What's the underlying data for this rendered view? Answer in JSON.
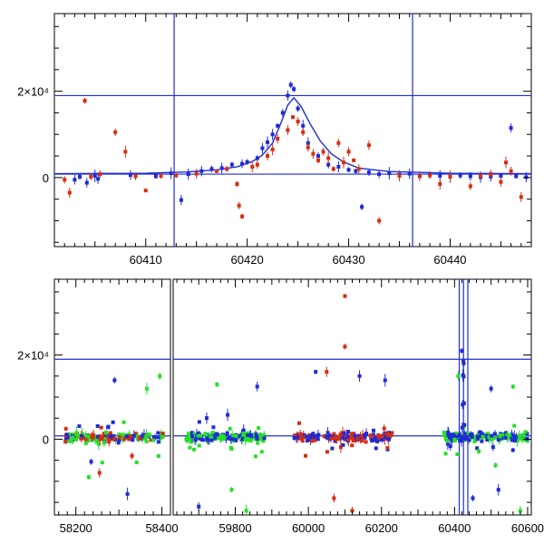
{
  "colors": {
    "red": "#d82e10",
    "blue": "#1f2bd6",
    "green": "#27e027",
    "line": "#1f2bd6"
  },
  "chart_data": [
    {
      "type": "scatter",
      "title": "",
      "xlabel": "",
      "ylabel": "",
      "xlim": [
        60401,
        60448
      ],
      "ylim": [
        -16000,
        38000
      ],
      "x_ticks": [
        60410,
        60420,
        60430,
        60440
      ],
      "x_tick_labels": [
        "60410",
        "60420",
        "60430",
        "60440"
      ],
      "y_ticks": [
        0,
        20000
      ],
      "y_tick_labels": [
        "0",
        "2×10⁴"
      ],
      "hlines": [
        19000,
        800
      ],
      "vlines": [
        60412.8,
        60436.3
      ],
      "model_curve": {
        "color": "blue",
        "x": [
          60401,
          60410,
          60414,
          60417,
          60419,
          60420.5,
          60421.5,
          60422.5,
          60423.3,
          60424.0,
          60424.6,
          60425.3,
          60426.2,
          60427.2,
          60428.3,
          60429.5,
          60431,
          60434,
          60440,
          60448
        ],
        "y": [
          900,
          1000,
          1300,
          1800,
          2500,
          3700,
          5200,
          8000,
          12500,
          16800,
          18500,
          16500,
          12500,
          8500,
          5500,
          3600,
          2200,
          1400,
          1000,
          900
        ]
      },
      "series": [
        {
          "color": "blue",
          "x": [
            60403.0,
            60403.5,
            60404.2,
            60405.0,
            60405.3,
            60408.5,
            60411.0,
            60412.5,
            60413.5,
            60414.2,
            60415.5,
            60416.5,
            60417.5,
            60418.5,
            60419.5,
            60420.0,
            60421.0,
            60421.5,
            60422.0,
            60422.5,
            60423.0,
            60423.5,
            60424.0,
            60424.3,
            60424.6,
            60425.0,
            60425.5,
            60426.0,
            60427.0,
            60428.0,
            60429.0,
            60430.0,
            60430.7,
            60431.3,
            60432.0,
            60433.0,
            60434.0,
            60435.0,
            60436.0,
            60437.0,
            60438.0,
            60439.0,
            60440.0,
            60441.0,
            60442.0,
            60443.0,
            60444.0,
            60445.0,
            60446.0,
            60446.5,
            60447.5
          ],
          "y": [
            -500,
            200,
            -1200,
            400,
            -300,
            600,
            300,
            1000,
            -5200,
            800,
            1500,
            2000,
            2200,
            3000,
            3200,
            3600,
            4500,
            6800,
            8200,
            10000,
            12000,
            15000,
            19000,
            21500,
            20500,
            16000,
            12000,
            8000,
            5000,
            3000,
            2500,
            1800,
            1500,
            -6800,
            1200,
            800,
            1000,
            700,
            900,
            500,
            600,
            400,
            200,
            500,
            300,
            100,
            200,
            400,
            11500,
            300,
            100
          ]
        },
        {
          "color": "red",
          "x": [
            60402.0,
            60402.5,
            60404.0,
            60404.6,
            60405.5,
            60407.0,
            60408.0,
            60409.0,
            60410.0,
            60411.5,
            60413.0,
            60415.0,
            60417.0,
            60418.0,
            60419.0,
            60419.2,
            60419.5,
            60420.5,
            60421.0,
            60422.0,
            60422.5,
            60423.0,
            60424.0,
            60424.5,
            60425.0,
            60425.5,
            60426.0,
            60426.5,
            60427.0,
            60427.5,
            60428.0,
            60428.5,
            60429.0,
            60429.5,
            60430.0,
            60430.5,
            60431.0,
            60432.0,
            60433.0,
            60435.0,
            60437.0,
            60438.0,
            60439.0,
            60440.0,
            60442.0,
            60443.0,
            60444.0,
            60445.0,
            60445.5,
            60446.0,
            60447.0
          ],
          "y": [
            -500,
            -3500,
            17800,
            200,
            800,
            10500,
            6000,
            300,
            -3000,
            400,
            500,
            900,
            1500,
            2000,
            -1500,
            -6500,
            -9000,
            2500,
            3000,
            5000,
            6500,
            9000,
            11000,
            14000,
            13000,
            10500,
            7000,
            5500,
            4000,
            6000,
            4500,
            2000,
            8000,
            3500,
            6000,
            4000,
            2000,
            7500,
            -10000,
            400,
            300,
            500,
            -1500,
            200,
            -2000,
            400,
            800,
            -1000,
            3500,
            1500,
            -4500
          ]
        }
      ]
    },
    {
      "type": "scatter",
      "title": "",
      "xlabel": "",
      "ylabel": "",
      "x_ranges": [
        [
          58150,
          58420
        ],
        [
          59630,
          60610
        ]
      ],
      "ylim": [
        -18000,
        38000
      ],
      "x_ticks": [
        58200,
        58400,
        59800,
        60000,
        60200,
        60400,
        60600
      ],
      "x_tick_labels": [
        "58200",
        "58400",
        "59800",
        "60000",
        "60200",
        "60400",
        "60600"
      ],
      "y_ticks": [
        0,
        20000
      ],
      "y_tick_labels": [
        "0",
        "2×10⁴"
      ],
      "hlines": [
        19000,
        800
      ],
      "vlines": [
        60412.8,
        60424.5,
        60436.3
      ],
      "seasons": [
        {
          "x_range": [
            58175,
            58405
          ],
          "colors": [
            "blue",
            "red",
            "green"
          ],
          "outliers": [
            [
              58290,
              14000,
              "blue"
            ],
            [
              58365,
              12000,
              "green"
            ],
            [
              58395,
              15000,
              "green"
            ],
            [
              58230,
              -9000,
              "green"
            ],
            [
              58320,
              -13000,
              "blue"
            ],
            [
              58255,
              -8000,
              "red"
            ]
          ]
        },
        {
          "x_range": [
            59665,
            59880
          ],
          "colors": [
            "blue",
            "green"
          ],
          "outliers": [
            [
              59750,
              13000,
              "green"
            ],
            [
              59860,
              12500,
              "blue"
            ],
            [
              59700,
              -16000,
              "blue"
            ],
            [
              59830,
              -17000,
              "green"
            ],
            [
              59790,
              -12000,
              "green"
            ]
          ]
        },
        {
          "x_range": [
            59960,
            60230
          ],
          "colors": [
            "red",
            "blue"
          ],
          "outliers": [
            [
              60100,
              34000,
              "red"
            ],
            [
              60100,
              22000,
              "red"
            ],
            [
              60050,
              16000,
              "red"
            ],
            [
              60140,
              15000,
              "blue"
            ],
            [
              60210,
              14000,
              "blue"
            ],
            [
              60120,
              -17000,
              "red"
            ],
            [
              60070,
              -14000,
              "red"
            ],
            [
              60020,
              16000,
              "blue"
            ]
          ]
        },
        {
          "x_range": [
            60370,
            60600
          ],
          "colors": [
            "blue",
            "green"
          ],
          "outliers": [
            [
              60420,
              21000,
              "blue"
            ],
            [
              60425,
              18000,
              "blue"
            ],
            [
              60410,
              15000,
              "green"
            ],
            [
              60500,
              12000,
              "blue"
            ],
            [
              60560,
              12500,
              "green"
            ],
            [
              60580,
              -17000,
              "green"
            ],
            [
              60450,
              -14000,
              "blue"
            ],
            [
              60520,
              -12000,
              "blue"
            ]
          ]
        }
      ]
    }
  ]
}
